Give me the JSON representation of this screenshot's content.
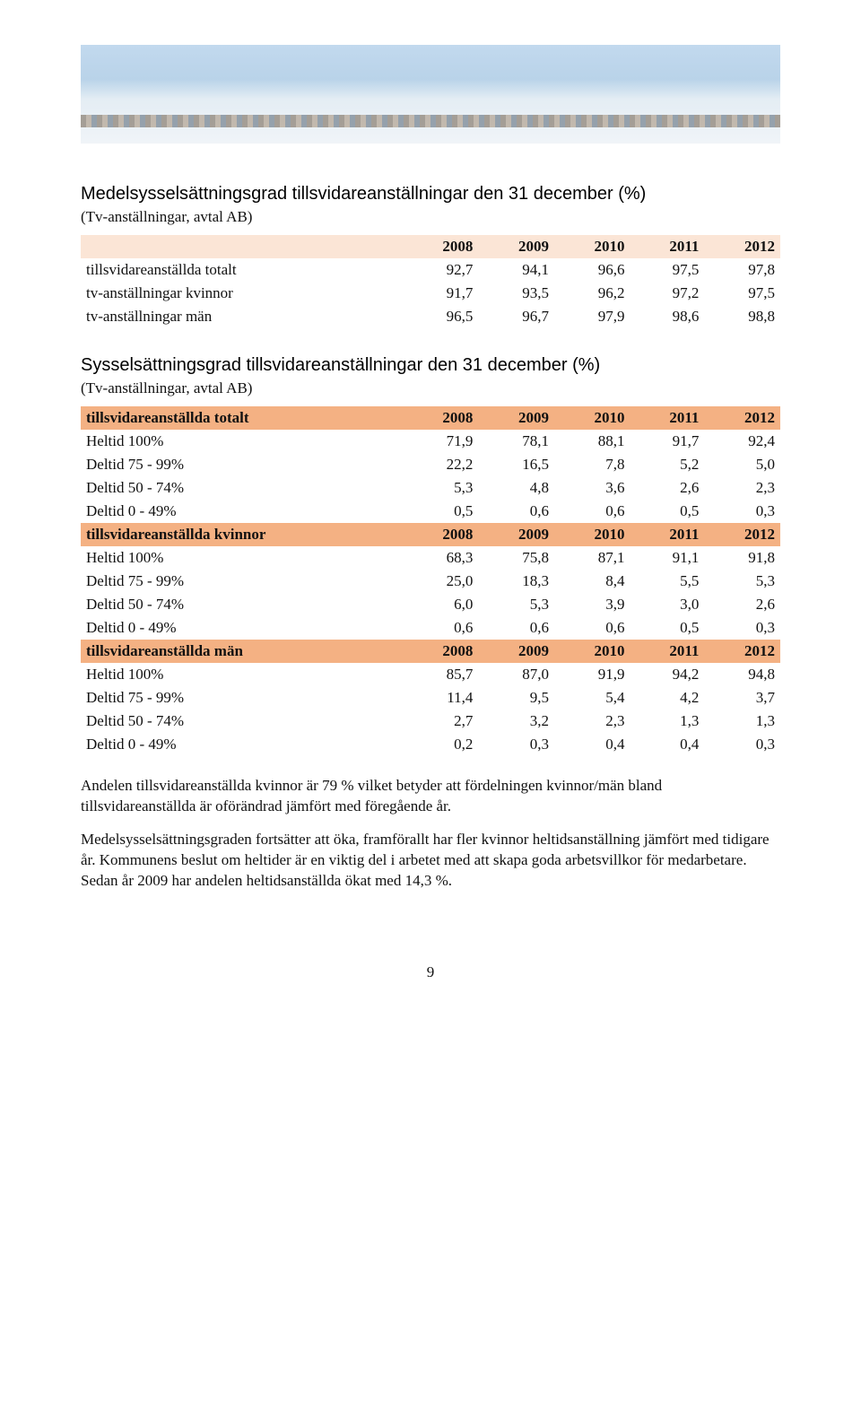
{
  "sec1": {
    "title": "Medelsysselsättningsgrad tillsvidareanställningar den 31 december (%)",
    "subcap": "(Tv-anställningar, avtal AB)",
    "header": [
      "",
      "2008",
      "2009",
      "2010",
      "2011",
      "2012"
    ],
    "rows": [
      [
        "tillsvidareanställda totalt",
        "92,7",
        "94,1",
        "96,6",
        "97,5",
        "97,8"
      ],
      [
        "tv-anställningar kvinnor",
        "91,7",
        "93,5",
        "96,2",
        "97,2",
        "97,5"
      ],
      [
        "tv-anställningar män",
        "96,5",
        "96,7",
        "97,9",
        "98,6",
        "98,8"
      ]
    ]
  },
  "sec2": {
    "title": "Sysselsättningsgrad tillsvidareanställningar den 31 december (%)",
    "subcap": "(Tv-anställningar, avtal AB)",
    "groups": [
      {
        "header": [
          "tillsvidareanställda totalt",
          "2008",
          "2009",
          "2010",
          "2011",
          "2012"
        ],
        "rows": [
          [
            "Heltid 100%",
            "71,9",
            "78,1",
            "88,1",
            "91,7",
            "92,4"
          ],
          [
            "Deltid 75 - 99%",
            "22,2",
            "16,5",
            "7,8",
            "5,2",
            "5,0"
          ],
          [
            "Deltid 50 - 74%",
            "5,3",
            "4,8",
            "3,6",
            "2,6",
            "2,3"
          ],
          [
            "Deltid 0 - 49%",
            "0,5",
            "0,6",
            "0,6",
            "0,5",
            "0,3"
          ]
        ]
      },
      {
        "header": [
          "tillsvidareanställda kvinnor",
          "2008",
          "2009",
          "2010",
          "2011",
          "2012"
        ],
        "rows": [
          [
            "Heltid 100%",
            "68,3",
            "75,8",
            "87,1",
            "91,1",
            "91,8"
          ],
          [
            "Deltid 75 - 99%",
            "25,0",
            "18,3",
            "8,4",
            "5,5",
            "5,3"
          ],
          [
            "Deltid 50 - 74%",
            "6,0",
            "5,3",
            "3,9",
            "3,0",
            "2,6"
          ],
          [
            "Deltid 0 - 49%",
            "0,6",
            "0,6",
            "0,6",
            "0,5",
            "0,3"
          ]
        ]
      },
      {
        "header": [
          "tillsvidareanställda män",
          "2008",
          "2009",
          "2010",
          "2011",
          "2012"
        ],
        "rows": [
          [
            "Heltid 100%",
            "85,7",
            "87,0",
            "91,9",
            "94,2",
            "94,8"
          ],
          [
            "Deltid 75 - 99%",
            "11,4",
            "9,5",
            "5,4",
            "4,2",
            "3,7"
          ],
          [
            "Deltid 50 - 74%",
            "2,7",
            "3,2",
            "2,3",
            "1,3",
            "1,3"
          ],
          [
            "Deltid 0 - 49%",
            "0,2",
            "0,3",
            "0,4",
            "0,4",
            "0,3"
          ]
        ]
      }
    ]
  },
  "paragraphs": [
    "Andelen tillsvidareanställda kvinnor är 79 % vilket betyder att fördelningen kvinnor/män bland tillsvidareanställda är oförändrad jämfört med föregående år.",
    "Medelsysselsättningsgraden fortsätter att öka, framförallt har fler kvinnor heltidsanställning jämfört med tidigare år. Kommunens beslut om heltider är en viktig del i arbetet med att skapa goda arbetsvillkor för medarbetare. Sedan år 2009 har andelen heltidsanställda ökat med 14,3 %."
  ],
  "page_number": "9",
  "colors": {
    "header_orange": "#f4b183",
    "header_light": "#fbe5d6"
  }
}
